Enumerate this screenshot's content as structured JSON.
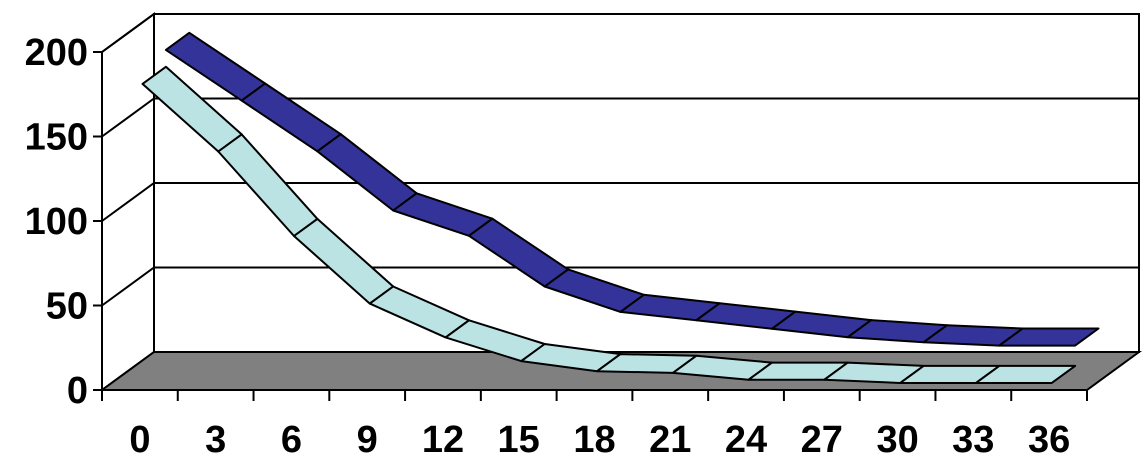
{
  "chart_data": {
    "type": "area",
    "style": "3d-ribbon",
    "title": "",
    "xlabel": "",
    "ylabel": "",
    "x": [
      0,
      3,
      6,
      9,
      12,
      15,
      18,
      21,
      24,
      27,
      30,
      33,
      36
    ],
    "x_tick_labels": [
      "0",
      "3",
      "6",
      "9",
      "12",
      "15",
      "18",
      "21",
      "24",
      "27",
      "30",
      "33",
      "36"
    ],
    "y_ticks": [
      0,
      50,
      100,
      150,
      200
    ],
    "y_tick_labels": [
      "0",
      "50",
      "100",
      "150",
      "200"
    ],
    "ylim": [
      0,
      200
    ],
    "grid": true,
    "legend": "none",
    "series": [
      {
        "values": [
          190,
          160,
          130,
          95,
          80,
          50,
          35,
          30,
          25,
          20,
          17,
          15,
          15
        ],
        "color": "#333399"
      },
      {
        "values": [
          180,
          140,
          90,
          50,
          30,
          16,
          10,
          9,
          5,
          5,
          3,
          3,
          3
        ],
        "color": "#bbe3e3"
      }
    ],
    "colors": {
      "floor": "#808080",
      "walls": "#ffffff",
      "gridline": "#000000"
    }
  }
}
